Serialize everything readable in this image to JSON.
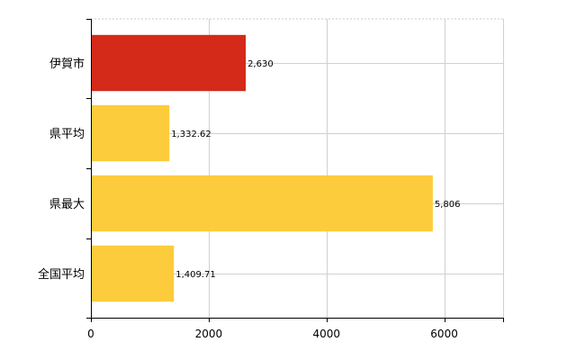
{
  "chart_data": {
    "type": "bar",
    "orientation": "horizontal",
    "title": "",
    "xlabel": "",
    "ylabel": "",
    "categories": [
      "伊賀市",
      "県平均",
      "県最大",
      "全国平均"
    ],
    "values": [
      2630,
      1332.62,
      5806,
      1409.71
    ],
    "value_labels": [
      "2,630",
      "1,332.62",
      "5,806",
      "1,409.71"
    ],
    "bar_colors": [
      "#d42a1a",
      "#fccc3c",
      "#fccc3c",
      "#fccc3c"
    ],
    "xlim": [
      0,
      7000
    ],
    "xticks": [
      0,
      2000,
      4000,
      6000
    ],
    "xtick_labels": [
      "0",
      "2000",
      "4000",
      "6000"
    ],
    "grid": true,
    "legend": "none"
  }
}
